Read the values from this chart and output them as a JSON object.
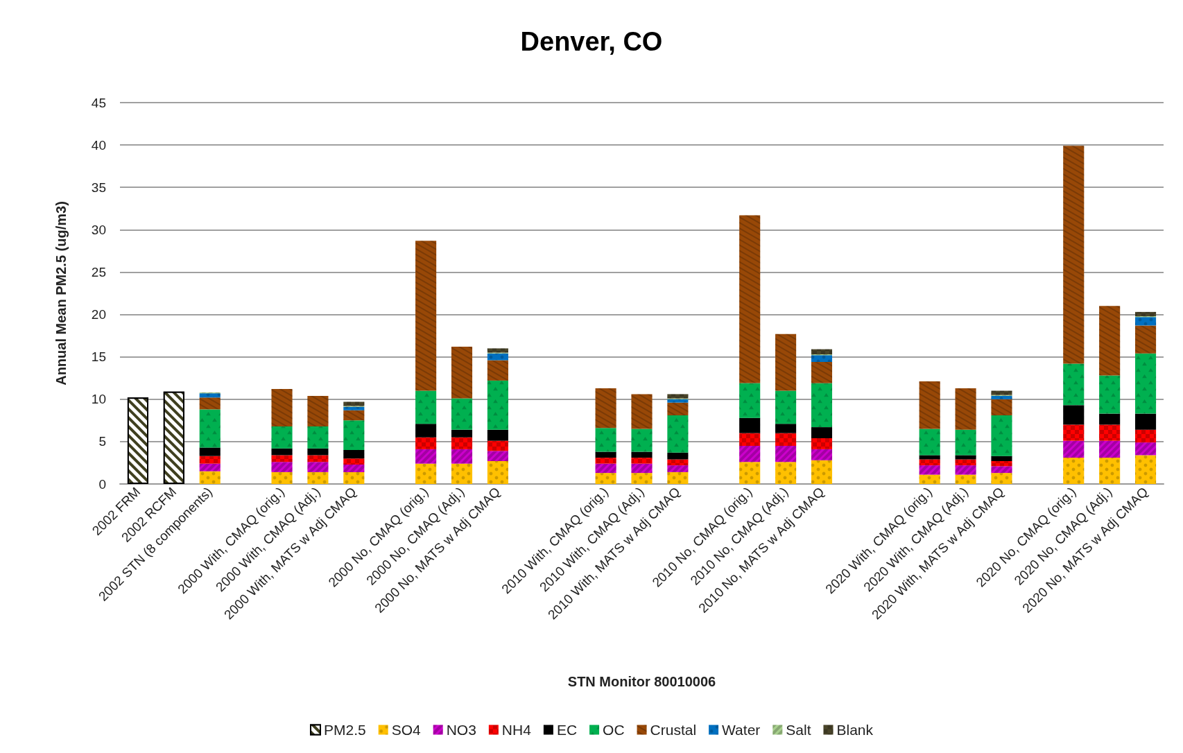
{
  "chart_data": {
    "type": "bar",
    "stacked": true,
    "title": "Denver, CO",
    "xlabel": "STN Monitor 80010006",
    "ylabel": "Annual Mean PM2.5 (ug/m3)",
    "categories": [
      "2002 FRM",
      "2002 RCFM",
      "2002 STN (8 components)",
      null,
      "2000 With, CMAQ (orig.)",
      "2000 With, CMAQ (Adj.)",
      "2000 With, MATS w Adj CMAQ",
      null,
      "2000 No, CMAQ (orig.)",
      "2000 No, CMAQ (Adj.)",
      "2000 No, MATS w Adj CMAQ",
      null,
      null,
      "2010 With, CMAQ (orig.)",
      "2010 With, CMAQ (Adj.)",
      "2010 With, MATS w Adj CMAQ",
      null,
      "2010 No, CMAQ (orig.)",
      "2010 No, CMAQ (Adj.)",
      "2010 No, MATS w Adj CMAQ",
      null,
      null,
      "2020 With, CMAQ (orig.)",
      "2020 With, CMAQ (Adj.)",
      "2020 With, MATS w Adj CMAQ",
      null,
      "2020 No, CMAQ (orig.)",
      "2020 No, CMAQ (Adj.)",
      "2020 No, MATS w Adj CMAQ"
    ],
    "series": [
      {
        "name": "PM2.5",
        "color": "#3f3f1f",
        "values": [
          10.2,
          10.9,
          null,
          null,
          null,
          null,
          null,
          null,
          null,
          null,
          null,
          null,
          null,
          null,
          null,
          null,
          null,
          null,
          null,
          null,
          null,
          null,
          null,
          null,
          null,
          null,
          null,
          null,
          null
        ]
      },
      {
        "name": "SO4",
        "color": "#ffc000",
        "values": [
          null,
          null,
          1.5,
          null,
          1.4,
          1.4,
          1.4,
          null,
          2.4,
          2.4,
          2.7,
          null,
          null,
          1.3,
          1.3,
          1.4,
          null,
          2.6,
          2.6,
          2.8,
          null,
          null,
          1.1,
          1.1,
          1.3,
          null,
          3.1,
          3.1,
          3.4
        ]
      },
      {
        "name": "NO3",
        "color": "#cc00cc",
        "values": [
          null,
          null,
          0.9,
          null,
          1.2,
          1.2,
          0.9,
          null,
          1.7,
          1.7,
          1.2,
          null,
          null,
          1.1,
          1.1,
          0.8,
          null,
          1.9,
          1.9,
          1.3,
          null,
          null,
          1.1,
          1.1,
          0.8,
          null,
          2.0,
          2.0,
          1.5
        ]
      },
      {
        "name": "NH4",
        "color": "#ff0000",
        "values": [
          null,
          null,
          0.9,
          null,
          0.8,
          0.8,
          0.7,
          null,
          1.4,
          1.4,
          1.2,
          null,
          null,
          0.7,
          0.7,
          0.7,
          null,
          1.5,
          1.5,
          1.3,
          null,
          null,
          0.7,
          0.7,
          0.6,
          null,
          1.9,
          1.9,
          1.5
        ]
      },
      {
        "name": "EC",
        "color": "#000000",
        "values": [
          null,
          null,
          1.0,
          null,
          0.8,
          0.8,
          1.0,
          null,
          1.6,
          0.9,
          1.3,
          null,
          null,
          0.7,
          0.7,
          0.8,
          null,
          1.8,
          1.1,
          1.3,
          null,
          null,
          0.5,
          0.5,
          0.6,
          null,
          2.3,
          1.3,
          1.9
        ]
      },
      {
        "name": "OC",
        "color": "#00b050",
        "values": [
          null,
          null,
          4.5,
          null,
          2.6,
          2.6,
          3.5,
          null,
          3.9,
          3.7,
          5.8,
          null,
          null,
          2.8,
          2.7,
          4.4,
          null,
          4.1,
          3.9,
          5.2,
          null,
          null,
          3.1,
          3.0,
          4.8,
          null,
          4.9,
          4.5,
          7.1
        ]
      },
      {
        "name": "Crustal",
        "color": "#984807",
        "values": [
          null,
          null,
          1.4,
          null,
          4.4,
          3.6,
          1.2,
          null,
          17.7,
          6.1,
          2.4,
          null,
          null,
          4.7,
          4.1,
          1.5,
          null,
          19.8,
          6.7,
          2.5,
          null,
          null,
          5.6,
          4.9,
          1.9,
          null,
          25.7,
          8.2,
          3.3
        ]
      },
      {
        "name": "Water",
        "color": "#0070c0",
        "values": [
          null,
          null,
          0.5,
          null,
          null,
          null,
          0.4,
          null,
          null,
          null,
          0.8,
          null,
          null,
          null,
          null,
          0.4,
          null,
          null,
          null,
          0.8,
          null,
          null,
          null,
          null,
          0.4,
          null,
          null,
          null,
          1.0
        ]
      },
      {
        "name": "Salt",
        "color": "#a9d18e",
        "values": [
          null,
          null,
          0.1,
          null,
          null,
          null,
          0.1,
          null,
          null,
          null,
          0.1,
          null,
          null,
          null,
          null,
          0.1,
          null,
          null,
          null,
          0.1,
          null,
          null,
          null,
          null,
          0.1,
          null,
          null,
          null,
          0.1
        ]
      },
      {
        "name": "Blank",
        "color": "#4a452a",
        "values": [
          null,
          null,
          null,
          null,
          null,
          null,
          0.5,
          null,
          null,
          null,
          0.5,
          null,
          null,
          null,
          null,
          0.5,
          null,
          null,
          null,
          0.6,
          null,
          null,
          null,
          null,
          0.5,
          null,
          null,
          null,
          0.5
        ]
      }
    ],
    "ylim": [
      0,
      45
    ],
    "yticks": [
      0,
      5,
      10,
      15,
      20,
      25,
      30,
      35,
      40,
      45
    ],
    "grid": "y",
    "legend": "bottom"
  }
}
